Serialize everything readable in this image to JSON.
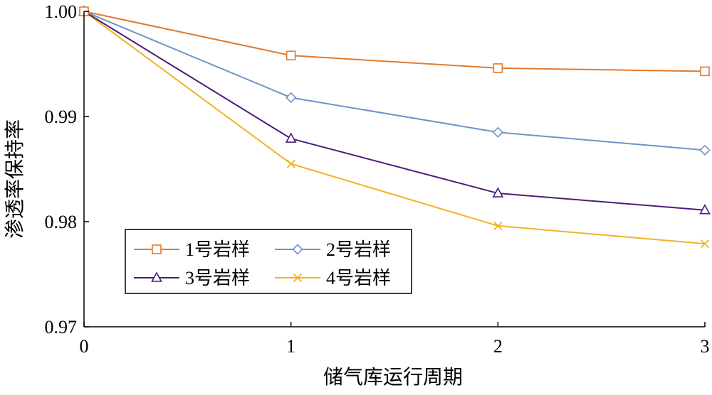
{
  "chart_data": {
    "type": "line",
    "title": "",
    "xlabel": "储气库运行周期",
    "ylabel": "渗透率保持率",
    "x": [
      0,
      1,
      2,
      3
    ],
    "x_ticks": [
      "0",
      "1",
      "2",
      "3"
    ],
    "y_ticks": [
      "0.97",
      "0.98",
      "0.99",
      "1.00"
    ],
    "xlim": [
      0,
      3
    ],
    "ylim": [
      0.97,
      1.0
    ],
    "grid": false,
    "legend_position": "bottom-left, two columns",
    "series": [
      {
        "name": "1号岩样",
        "marker": "square",
        "color": "#E07B2F",
        "values": [
          1.0,
          0.9958,
          0.9946,
          0.9943
        ]
      },
      {
        "name": "2号岩样",
        "marker": "diamond",
        "color": "#6E93C8",
        "values": [
          1.0,
          0.9918,
          0.9885,
          0.9868
        ]
      },
      {
        "name": "3号岩样",
        "marker": "triangle",
        "color": "#4B1D78",
        "values": [
          1.0,
          0.9879,
          0.9827,
          0.9811
        ]
      },
      {
        "name": "4号岩样",
        "marker": "x",
        "color": "#F0B323",
        "values": [
          1.0,
          0.9855,
          0.9796,
          0.9779
        ]
      }
    ]
  }
}
